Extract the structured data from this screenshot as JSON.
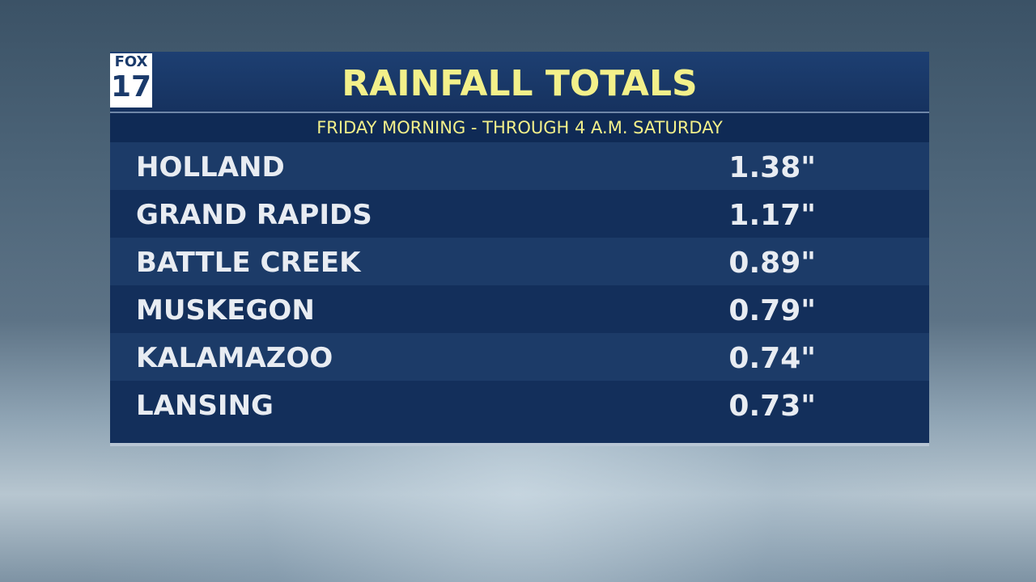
{
  "logo": {
    "line1": "FOX",
    "line2": "17"
  },
  "header": {
    "title": "RAINFALL TOTALS",
    "subtitle": "FRIDAY MORNING - THROUGH 4 A.M. SATURDAY"
  },
  "table": {
    "rows": [
      [
        "HOLLAND",
        "1.38\""
      ],
      [
        "GRAND RAPIDS",
        "1.17\""
      ],
      [
        "BATTLE CREEK",
        "0.89\""
      ],
      [
        "MUSKEGON",
        "0.79\""
      ],
      [
        "KALAMAZOO",
        "0.74\""
      ],
      [
        "LANSING",
        "0.73\""
      ]
    ]
  }
}
